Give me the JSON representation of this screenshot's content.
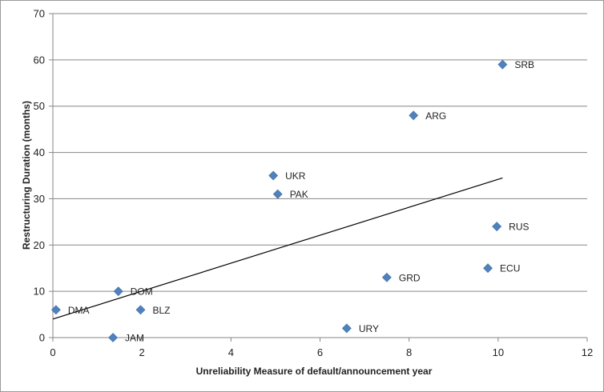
{
  "chart_data": {
    "type": "scatter",
    "xlabel": "Unreliability Measure of default/announcement year",
    "ylabel": "Restructuring Duration (months)",
    "xlim": [
      0,
      12
    ],
    "ylim": [
      0,
      70
    ],
    "x_ticks": [
      "0",
      "2",
      "4",
      "6",
      "8",
      "10",
      "12"
    ],
    "y_ticks": [
      "0",
      "10",
      "20",
      "30",
      "40",
      "50",
      "60",
      "70"
    ],
    "x_tick_values": [
      0,
      2,
      4,
      6,
      8,
      10,
      12
    ],
    "y_tick_values": [
      0,
      10,
      20,
      30,
      40,
      50,
      60,
      70
    ],
    "grid": "horizontal",
    "legend": "none",
    "marker_color": "#4F81BD",
    "marker_shape": "diamond",
    "points": [
      {
        "label": "SRB",
        "x": 10.1,
        "y": 59
      },
      {
        "label": "ARG",
        "x": 8.1,
        "y": 48
      },
      {
        "label": "UKR",
        "x": 4.95,
        "y": 35
      },
      {
        "label": "PAK",
        "x": 5.05,
        "y": 31
      },
      {
        "label": "RUS",
        "x": 9.97,
        "y": 24
      },
      {
        "label": "ECU",
        "x": 9.77,
        "y": 15
      },
      {
        "label": "GRD",
        "x": 7.5,
        "y": 13
      },
      {
        "label": "DOM",
        "x": 1.47,
        "y": 10
      },
      {
        "label": "DMA",
        "x": 0.07,
        "y": 6
      },
      {
        "label": "BLZ",
        "x": 1.97,
        "y": 6
      },
      {
        "label": "URY",
        "x": 6.6,
        "y": 2
      },
      {
        "label": "JAM",
        "x": 1.35,
        "y": 0
      }
    ],
    "trendline": {
      "type": "linear",
      "x": [
        0,
        10.1
      ],
      "y": [
        4.0,
        34.5
      ],
      "color": "#000000"
    }
  }
}
